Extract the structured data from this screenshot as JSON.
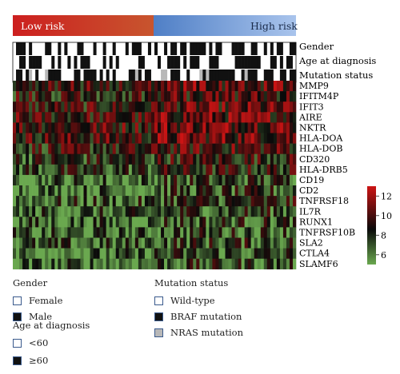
{
  "colors": {
    "low_risk_start": "#cc1f1f",
    "low_risk_end": "#c8552e",
    "high_risk_start": "#4f7fc6",
    "high_risk_end": "#a9c4ec",
    "heat_low": "#6aa84f",
    "heat_mid": "#0a0a0a",
    "heat_high": "#cc1414",
    "annot_black": "#111111",
    "annot_white": "#ffffff",
    "annot_gray": "#b8b8b8"
  },
  "chart_data": {
    "type": "heatmap",
    "groups": [
      "Low risk",
      "High risk"
    ],
    "annotation_rows": [
      "Gender",
      "Age at diagnosis",
      "Mutation status"
    ],
    "genes": [
      "MMP9",
      "IFITM4P",
      "IFIT3",
      "AIRE",
      "NKTR",
      "HLA-DOA",
      "HLA-DOB",
      "CD320",
      "HLA-DRB5",
      "CD19",
      "CD2",
      "TNFRSF18",
      "IL7R",
      "RUNX1",
      "TNFRSF10B",
      "SLA2",
      "CTLA4",
      "SLAMF6"
    ],
    "colorbar": {
      "ticks": [
        12,
        10,
        8,
        6
      ],
      "range": [
        5,
        13
      ]
    },
    "n_samples": 88,
    "n_low_risk": 44
  },
  "legend": {
    "gender": {
      "title": "Gender",
      "items": [
        {
          "label": "Female",
          "fill": "white"
        },
        {
          "label": "Male",
          "fill": "black"
        }
      ]
    },
    "age": {
      "title": "Age at diagnosis",
      "items": [
        {
          "label": "<60",
          "fill": "white"
        },
        {
          "label": "≥60",
          "fill": "black"
        }
      ]
    },
    "mutation": {
      "title": "Mutation status",
      "items": [
        {
          "label": "Wild-type",
          "fill": "white"
        },
        {
          "label": "BRAF mutation",
          "fill": "black"
        },
        {
          "label": "NRAS mutation",
          "fill": "gray"
        }
      ]
    }
  }
}
